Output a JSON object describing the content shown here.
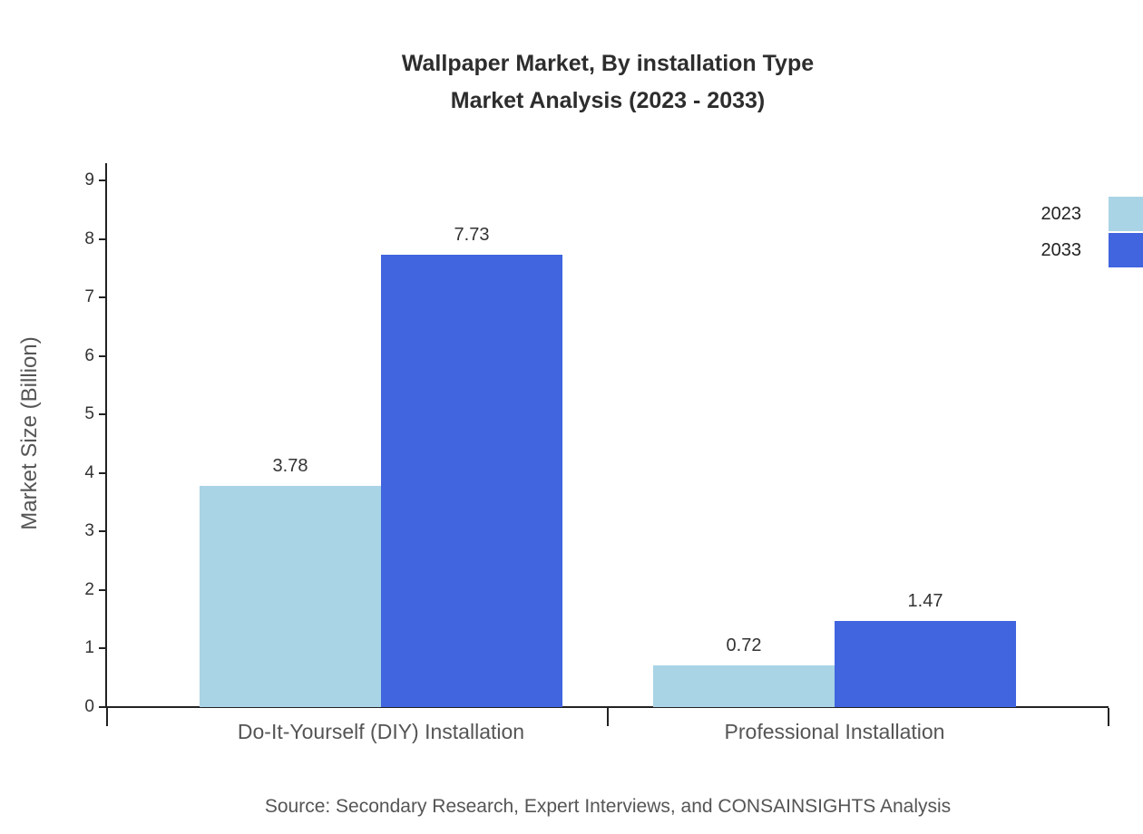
{
  "chart_data": {
    "type": "bar",
    "title_lines": [
      "Wallpaper Market, By installation Type",
      "Market Analysis (2023 - 2033)"
    ],
    "categories": [
      "Do-It-Yourself (DIY) Installation",
      "Professional Installation"
    ],
    "series": [
      {
        "name": "2023",
        "color": "#a9d4e5",
        "values": [
          3.78,
          0.72
        ]
      },
      {
        "name": "2033",
        "color": "#4164df",
        "values": [
          7.73,
          1.47
        ]
      }
    ],
    "ylabel": "Market Size (Billion)",
    "xlabel": "",
    "ylim": [
      0,
      9
    ],
    "yticks": [
      0,
      1,
      2,
      3,
      4,
      5,
      6,
      7,
      8,
      9
    ],
    "grid": false,
    "legend_position": "top-right",
    "value_labels": true,
    "source": "Source: Secondary Research, Expert Interviews, and CONSAINSIGHTS Analysis"
  }
}
